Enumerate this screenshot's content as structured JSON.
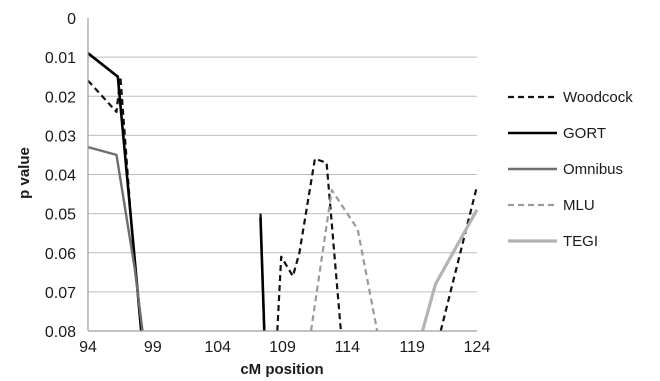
{
  "chart_data": {
    "type": "line",
    "title": "",
    "xlabel": "cM position",
    "ylabel": "p value",
    "xlim": [
      94,
      124
    ],
    "ylim": [
      0,
      0.08
    ],
    "y_inverted": true,
    "x_ticks": [
      "94",
      "99",
      "104",
      "109",
      "114",
      "119",
      "124"
    ],
    "y_ticks": [
      "0",
      "0.01",
      "0.02",
      "0.03",
      "0.04",
      "0.05",
      "0.06",
      "0.07",
      "0.08"
    ],
    "grid": "horizontal",
    "legend_position": "right",
    "series": [
      {
        "name": "Woodcock",
        "color": "#111111",
        "style": "dashed",
        "width": 2.2,
        "segments": [
          [
            [
              94,
              0.016
            ],
            [
              96.2,
              0.024
            ],
            [
              96.5,
              0.015
            ],
            [
              97.4,
              0.055
            ],
            [
              98.1,
              0.08
            ]
          ],
          [
            [
              107.3,
              0.05
            ],
            [
              107.6,
              0.08
            ]
          ],
          [
            [
              108.6,
              0.08
            ],
            [
              108.9,
              0.061
            ],
            [
              109.8,
              0.066
            ],
            [
              110.3,
              0.06
            ],
            [
              111.5,
              0.036
            ],
            [
              112.4,
              0.037
            ],
            [
              113.5,
              0.08
            ]
          ],
          [
            [
              121.2,
              0.08
            ],
            [
              124,
              0.043
            ]
          ]
        ]
      },
      {
        "name": "GORT",
        "color": "#000000",
        "style": "solid",
        "width": 2.6,
        "segments": [
          [
            [
              94,
              0.009
            ],
            [
              96.3,
              0.015
            ],
            [
              97.5,
              0.058
            ],
            [
              98.1,
              0.08
            ]
          ],
          [
            [
              107.3,
              0.051
            ],
            [
              107.6,
              0.08
            ]
          ]
        ]
      },
      {
        "name": "Omnibus",
        "color": "#6e6e6e",
        "style": "solid",
        "width": 2.4,
        "segments": [
          [
            [
              94,
              0.033
            ],
            [
              96.2,
              0.035
            ],
            [
              97.6,
              0.064
            ],
            [
              98.2,
              0.08
            ]
          ]
        ]
      },
      {
        "name": "MLU",
        "color": "#9a9a9a",
        "style": "dashed",
        "width": 2.2,
        "segments": [
          [
            [
              111.2,
              0.08
            ],
            [
              112.8,
              0.044
            ],
            [
              114.8,
              0.054
            ],
            [
              116.3,
              0.08
            ]
          ]
        ]
      },
      {
        "name": "TEGI",
        "color": "#b3b3b3",
        "style": "solid",
        "width": 3.2,
        "segments": [
          [
            [
              119.8,
              0.08
            ],
            [
              120.8,
              0.068
            ],
            [
              124,
              0.049
            ]
          ]
        ]
      }
    ]
  }
}
